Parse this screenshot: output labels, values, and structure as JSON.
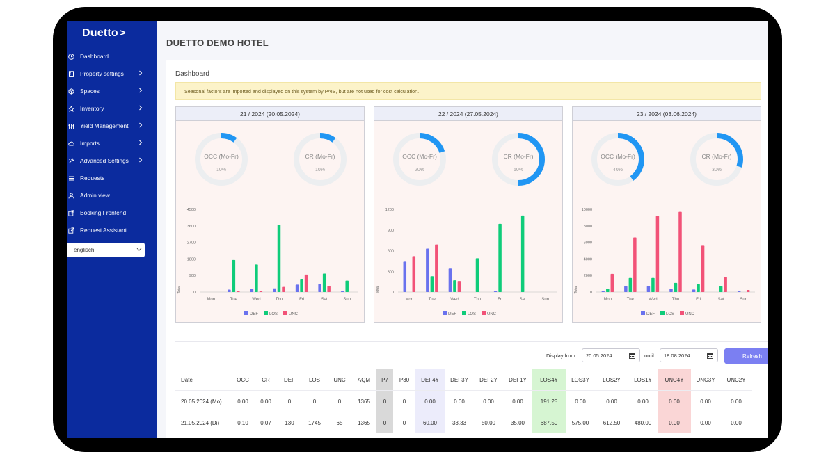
{
  "app": {
    "logo": "Duetto",
    "hotel_name": "DUETTO DEMO HOTEL"
  },
  "sidebar": {
    "items": [
      {
        "label": "Dashboard",
        "icon": "clock-icon",
        "has_submenu": false
      },
      {
        "label": "Property settings",
        "icon": "building-icon",
        "has_submenu": true
      },
      {
        "label": "Spaces",
        "icon": "cube-icon",
        "has_submenu": true
      },
      {
        "label": "Inventory",
        "icon": "star-icon",
        "has_submenu": true
      },
      {
        "label": "Yield Management",
        "icon": "sliders-icon",
        "has_submenu": true
      },
      {
        "label": "Imports",
        "icon": "cloud-icon",
        "has_submenu": true
      },
      {
        "label": "Advanced Settings",
        "icon": "tools-icon",
        "has_submenu": true
      },
      {
        "label": "Requests",
        "icon": "list-icon",
        "has_submenu": false
      },
      {
        "label": "Admin view",
        "icon": "user-icon",
        "has_submenu": false
      },
      {
        "label": "Booking Frontend",
        "icon": "external-link-icon",
        "has_submenu": false
      },
      {
        "label": "Request Assistant",
        "icon": "external-link-icon",
        "has_submenu": false
      }
    ],
    "language": "englisch"
  },
  "dashboard": {
    "title": "Dashboard",
    "notice": "Seasonal factors are imported and displayed on this system by PAIS, but are not used for cost calculation.",
    "colors": {
      "def": "#6a72ee",
      "los": "#0fcc7a",
      "unc": "#f25278",
      "donut": "#2196f3",
      "donut_track": "#eceef0"
    },
    "legend": [
      "DEF",
      "LOS",
      "UNC"
    ],
    "donut_labels": {
      "occ": "OCC (Mo-Fr)",
      "cr": "CR (Mo-Fr)"
    }
  },
  "chart_data": [
    {
      "type": "bar",
      "title": "21 / 2024 (20.05.2024)",
      "occ": "10%",
      "cr": "10%",
      "occ_value": 0.1,
      "cr_value": 0.1,
      "categories": [
        "Mon",
        "Tue",
        "Wed",
        "Thu",
        "Fri",
        "Sat",
        "Sun"
      ],
      "ylabel": "Total",
      "ylim": [
        0,
        4500
      ],
      "yticks": [
        "4500",
        "3600",
        "2700",
        "1800",
        "900",
        "0"
      ],
      "series": [
        {
          "name": "DEF",
          "values": [
            0,
            130,
            170,
            200,
            400,
            430,
            60
          ]
        },
        {
          "name": "LOS",
          "values": [
            0,
            1745,
            1500,
            3650,
            720,
            1000,
            620
          ]
        },
        {
          "name": "UNC",
          "values": [
            0,
            65,
            40,
            280,
            950,
            320,
            0
          ]
        }
      ]
    },
    {
      "type": "bar",
      "title": "22 / 2024 (27.05.2024)",
      "occ": "20%",
      "cr": "50%",
      "occ_value": 0.2,
      "cr_value": 0.5,
      "categories": [
        "Mon",
        "Tue",
        "Wed",
        "Thu",
        "Fri",
        "Sat",
        "Sun"
      ],
      "ylabel": "Total",
      "ylim": [
        0,
        1200
      ],
      "yticks": [
        "1200",
        "900",
        "600",
        "300",
        "0"
      ],
      "series": [
        {
          "name": "DEF",
          "values": [
            440,
            630,
            340,
            0,
            15,
            0,
            0
          ]
        },
        {
          "name": "LOS",
          "values": [
            0,
            230,
            170,
            490,
            990,
            1110,
            0
          ]
        },
        {
          "name": "UNC",
          "values": [
            520,
            690,
            160,
            0,
            0,
            0,
            0
          ]
        }
      ]
    },
    {
      "type": "bar",
      "title": "23 / 2024 (03.06.2024)",
      "occ": "40%",
      "cr": "30%",
      "occ_value": 0.4,
      "cr_value": 0.3,
      "categories": [
        "Mon",
        "Tue",
        "Wed",
        "Thu",
        "Fri",
        "Sat",
        "Sun"
      ],
      "ylabel": "Total",
      "ylim": [
        0,
        10000
      ],
      "yticks": [
        "10000",
        "8000",
        "6000",
        "4000",
        "2000",
        "0"
      ],
      "series": [
        {
          "name": "DEF",
          "values": [
            120,
            700,
            700,
            400,
            300,
            0,
            150
          ]
        },
        {
          "name": "LOS",
          "values": [
            420,
            1700,
            1700,
            1100,
            950,
            700,
            0
          ]
        },
        {
          "name": "UNC",
          "values": [
            2200,
            6600,
            9200,
            9700,
            5600,
            1800,
            250
          ]
        }
      ]
    }
  ],
  "filter": {
    "display_from_label": "Display from:",
    "from_value": "20.05.2024",
    "until_label": "until:",
    "until_value": "18.08.2024",
    "refresh_label": "Refresh"
  },
  "table": {
    "columns": [
      "Date",
      "OCC",
      "CR",
      "DEF",
      "LOS",
      "UNC",
      "AQM",
      "P7",
      "P30",
      "DEF4Y",
      "DEF3Y",
      "DEF2Y",
      "DEF1Y",
      "LOS4Y",
      "LOS3Y",
      "LOS2Y",
      "LOS1Y",
      "UNC4Y",
      "UNC3Y",
      "UNC2Y"
    ],
    "rows": [
      [
        "20.05.2024 (Mo)",
        "0.00",
        "0.00",
        "0",
        "0",
        "0",
        "1365",
        "0",
        "0",
        "0.00",
        "0.00",
        "0.00",
        "0.00",
        "191.25",
        "0.00",
        "0.00",
        "0.00",
        "0.00",
        "0.00",
        "0.00"
      ],
      [
        "21.05.2024 (Di)",
        "0.10",
        "0.07",
        "130",
        "1745",
        "65",
        "1365",
        "0",
        "0",
        "60.00",
        "33.33",
        "50.00",
        "35.00",
        "687.50",
        "575.00",
        "612.50",
        "480.00",
        "0.00",
        "0.00",
        "0.00"
      ]
    ]
  }
}
